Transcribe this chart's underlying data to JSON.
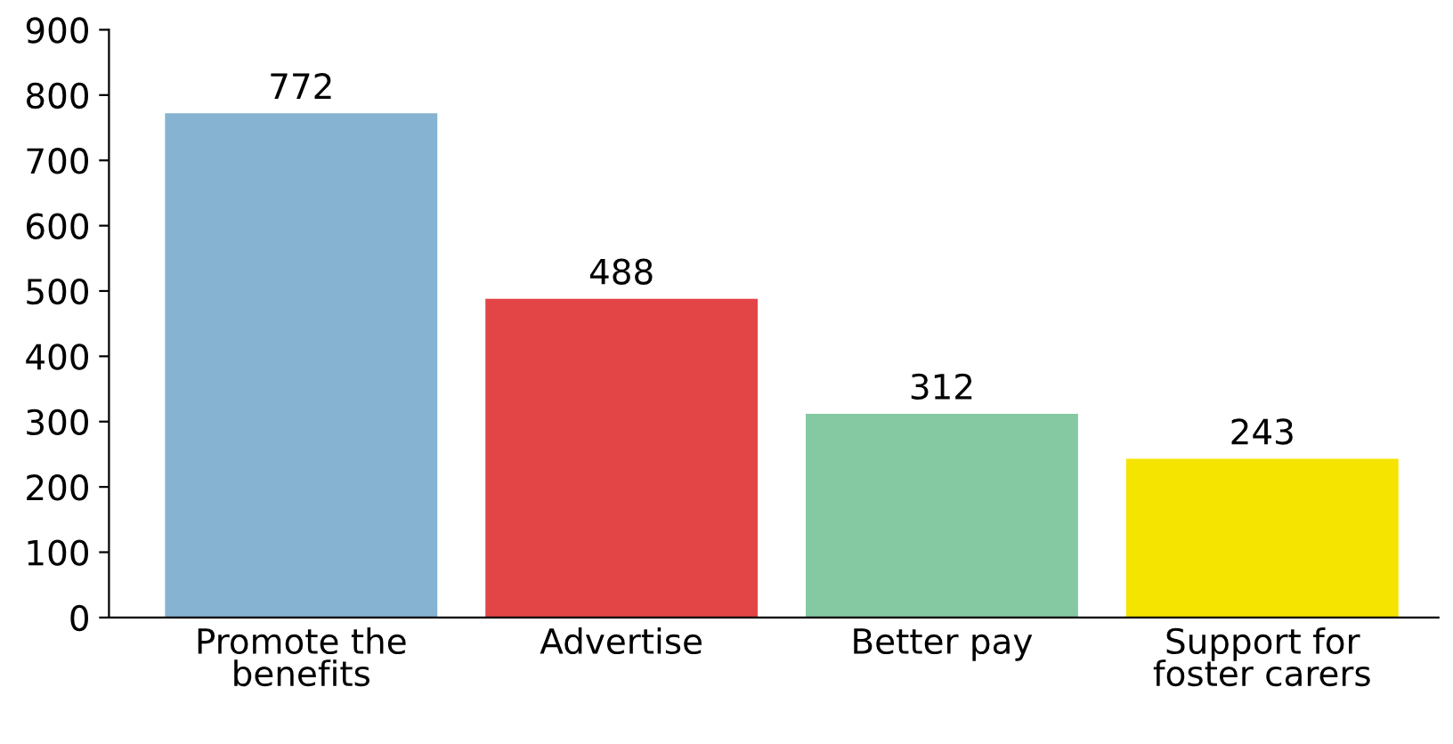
{
  "chart_data": {
    "type": "bar",
    "categories": [
      "Promote the\nbenefits",
      "Advertise",
      "Better pay",
      "Support for\nfoster carers"
    ],
    "values": [
      772,
      488,
      312,
      243
    ],
    "colors": [
      "#86b3d1",
      "#e34446",
      "#85c9a3",
      "#f5e400"
    ],
    "ylim": [
      0,
      900
    ],
    "yticks": [
      0,
      100,
      200,
      300,
      400,
      500,
      600,
      700,
      800,
      900
    ],
    "data_labels": true,
    "grid": false,
    "legend": false
  }
}
